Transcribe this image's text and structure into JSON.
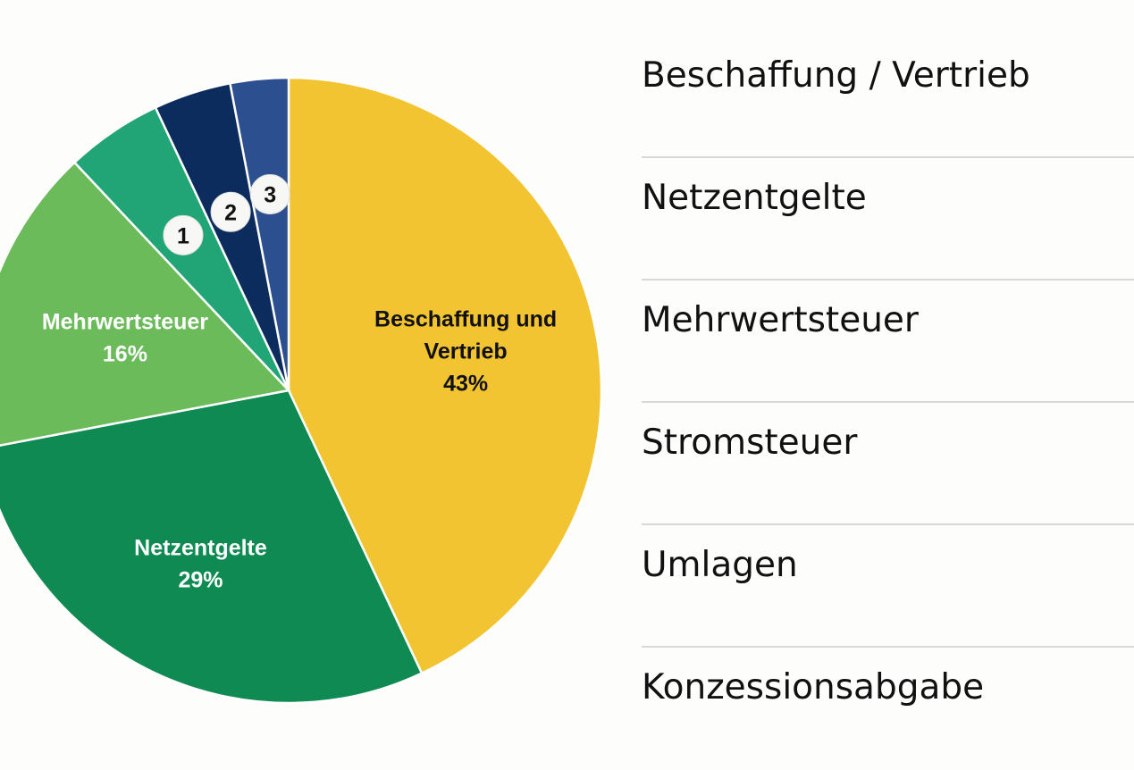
{
  "chart_data": {
    "type": "pie",
    "start": "top",
    "direction": "clockwise",
    "slices": [
      {
        "key": "beschaffung",
        "label_lines": [
          "Beschaffung und",
          "Vertrieb"
        ],
        "value_label": "43%",
        "value": 43,
        "color": "#F2C431",
        "text_color": "#111111"
      },
      {
        "key": "netzentgelte",
        "label_lines": [
          "Netzentgelte"
        ],
        "value_label": "29%",
        "value": 29,
        "color": "#0E8A52",
        "text_color": "#ffffff"
      },
      {
        "key": "mehrwertsteuer",
        "label_lines": [
          "Mehrwertsteuer"
        ],
        "value_label": "16%",
        "value": 16,
        "color": "#6CBB5B",
        "text_color": "#ffffff"
      },
      {
        "key": "slice-1",
        "marker": "1",
        "value": 5,
        "color": "#22A576"
      },
      {
        "key": "slice-2",
        "marker": "2",
        "value": 4,
        "color": "#0C2C5E"
      },
      {
        "key": "slice-3",
        "marker": "3",
        "value": 3,
        "color": "#2C4F8F"
      }
    ]
  },
  "legend": {
    "items": [
      "Beschaffung / Vertrieb",
      "Netzentgelte",
      "Mehrwertsteuer",
      "Stromsteuer",
      "Umlagen",
      "Konzessionsabgabe"
    ]
  }
}
